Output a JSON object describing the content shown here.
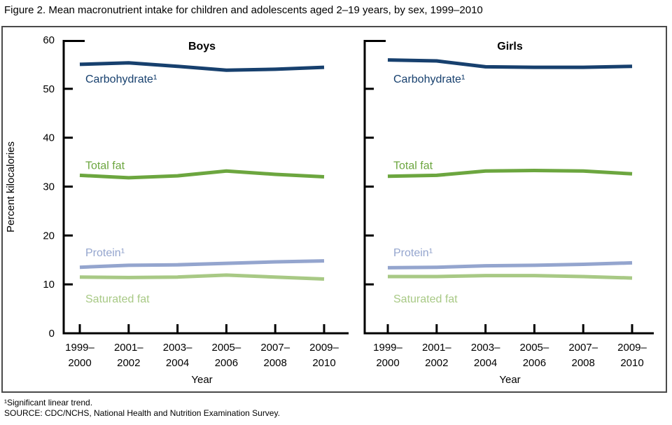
{
  "title": "Figure 2. Mean macronutrient intake for children and adolescents aged 2–19 years, by sex, 1999–2010",
  "footnotes": [
    "¹Significant linear trend.",
    "SOURCE: CDC/NCHS, National Health and Nutrition Examination Survey."
  ],
  "chart_data": {
    "type": "line",
    "title": "Mean macronutrient intake for children and adolescents aged 2–19 years, by sex, 1999–2010",
    "xlabel": "Year",
    "ylabel": "Percent kilocalories",
    "ylim": [
      0,
      60
    ],
    "yticks": [
      0,
      10,
      20,
      30,
      40,
      50,
      60
    ],
    "grid": false,
    "legend": "inline-labels",
    "categories": [
      "1999–2000",
      "2001–2002",
      "2003–2004",
      "2005–2006",
      "2007–2008",
      "2009–2010"
    ],
    "panels": [
      {
        "title": "Boys",
        "series": [
          {
            "name": "Carbohydrate¹",
            "color": "#17406e",
            "label_y": 52.0,
            "values": [
              55.0,
              55.3,
              54.6,
              53.8,
              54.0,
              54.4
            ]
          },
          {
            "name": "Total fat",
            "color": "#6ca63f",
            "label_y": 34.3,
            "values": [
              32.3,
              31.8,
              32.2,
              33.2,
              32.5,
              32.0
            ]
          },
          {
            "name": "Protein¹",
            "color": "#94a5ce",
            "label_y": 16.5,
            "values": [
              13.5,
              13.9,
              14.0,
              14.3,
              14.6,
              14.8
            ]
          },
          {
            "name": "Saturated fat",
            "color": "#a8c985",
            "label_y": 7.0,
            "values": [
              11.5,
              11.4,
              11.5,
              11.9,
              11.5,
              11.1
            ]
          }
        ]
      },
      {
        "title": "Girls",
        "series": [
          {
            "name": "Carbohydrate¹",
            "color": "#17406e",
            "label_y": 52.0,
            "values": [
              55.9,
              55.7,
              54.5,
              54.4,
              54.4,
              54.6
            ]
          },
          {
            "name": "Total fat",
            "color": "#6ca63f",
            "label_y": 34.3,
            "values": [
              32.1,
              32.3,
              33.2,
              33.3,
              33.2,
              32.6
            ]
          },
          {
            "name": "Protein¹",
            "color": "#94a5ce",
            "label_y": 16.5,
            "values": [
              13.4,
              13.5,
              13.8,
              13.9,
              14.1,
              14.4
            ]
          },
          {
            "name": "Saturated fat",
            "color": "#a8c985",
            "label_y": 7.0,
            "values": [
              11.6,
              11.6,
              11.8,
              11.8,
              11.6,
              11.3
            ]
          }
        ]
      }
    ]
  }
}
